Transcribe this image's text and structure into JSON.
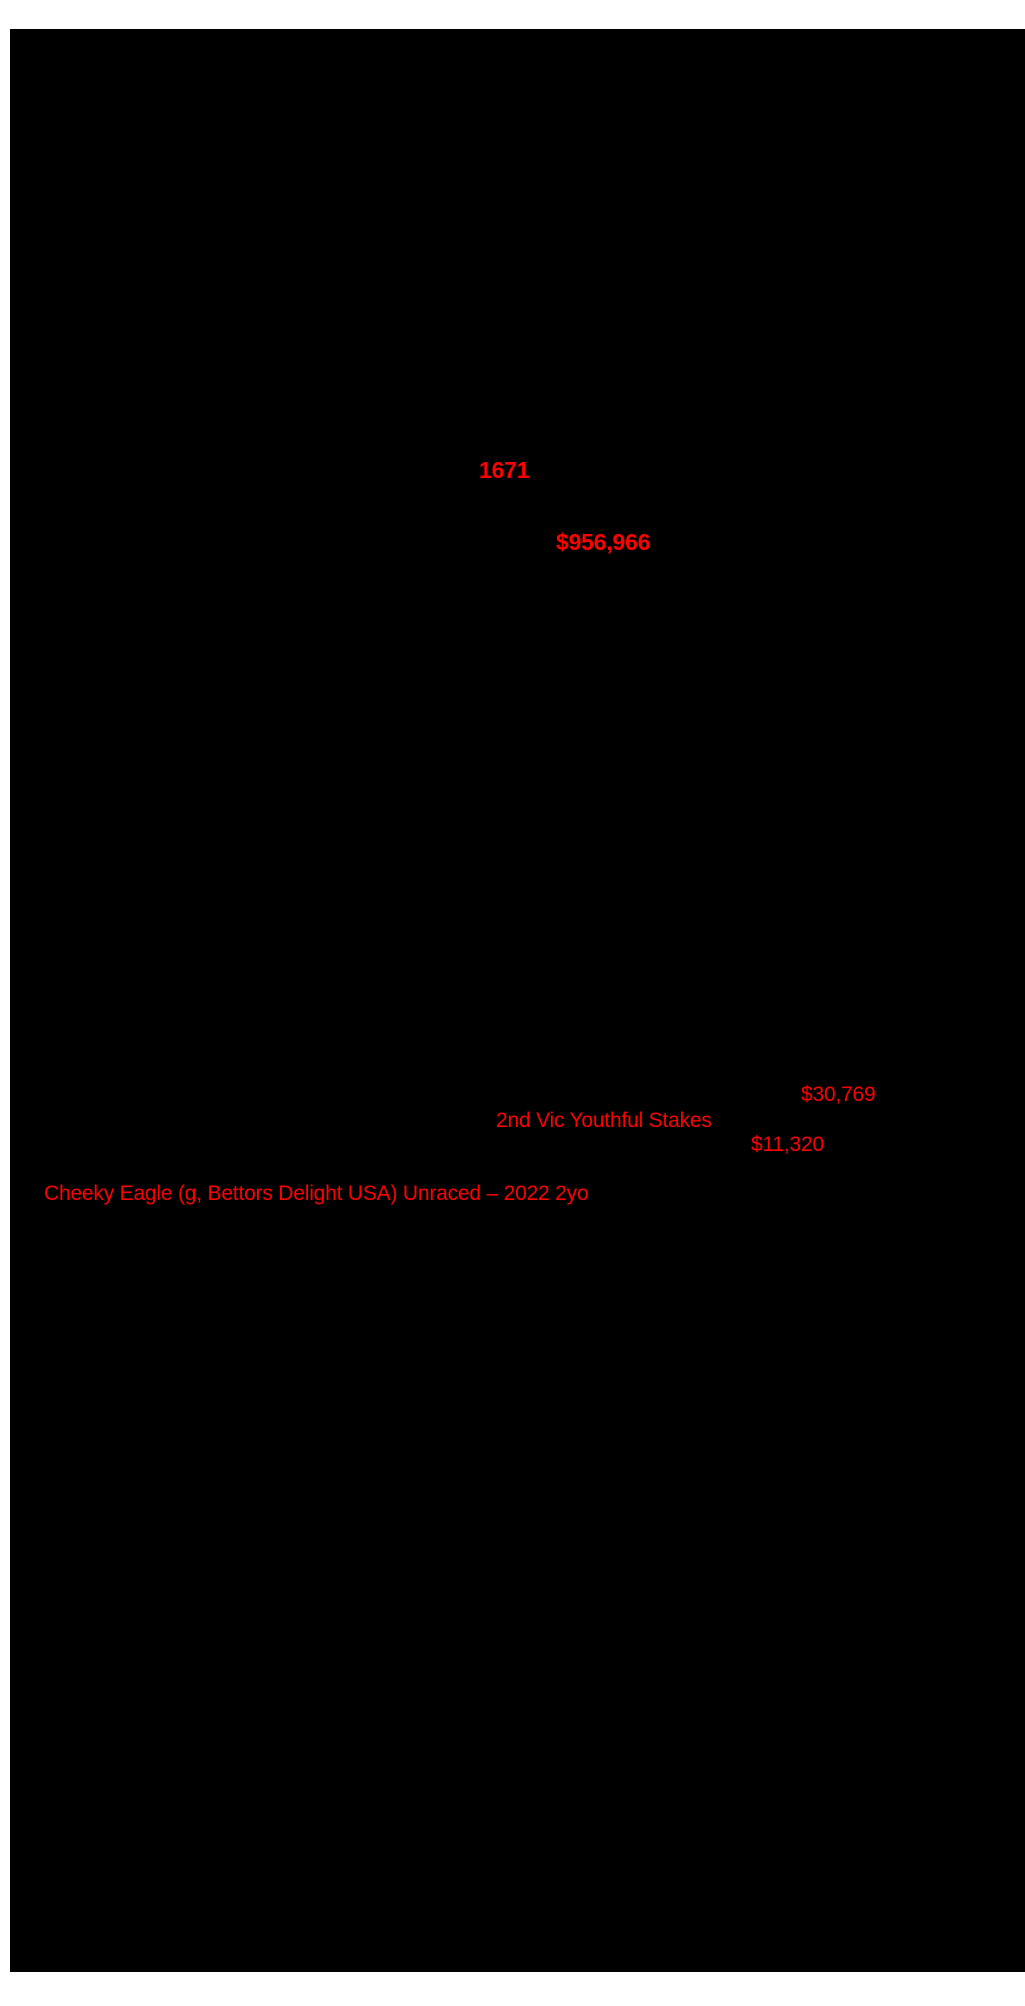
{
  "document": {
    "colors": {
      "canvas_background": "#ffffff",
      "page_background": "#000000",
      "highlight_red": "#fe0000"
    },
    "highlights": [
      {
        "text": "1671",
        "bold": true
      },
      {
        "text": "$956,966",
        "bold": true
      },
      {
        "text": "$30,769",
        "bold": false
      },
      {
        "text": "2nd Vic Youthful Stakes",
        "bold": false
      },
      {
        "text": "$11,320",
        "bold": false
      },
      {
        "text": "Cheeky Eagle (g, Bettors Delight USA) Unraced – 2022 2yo",
        "bold": false
      }
    ]
  }
}
